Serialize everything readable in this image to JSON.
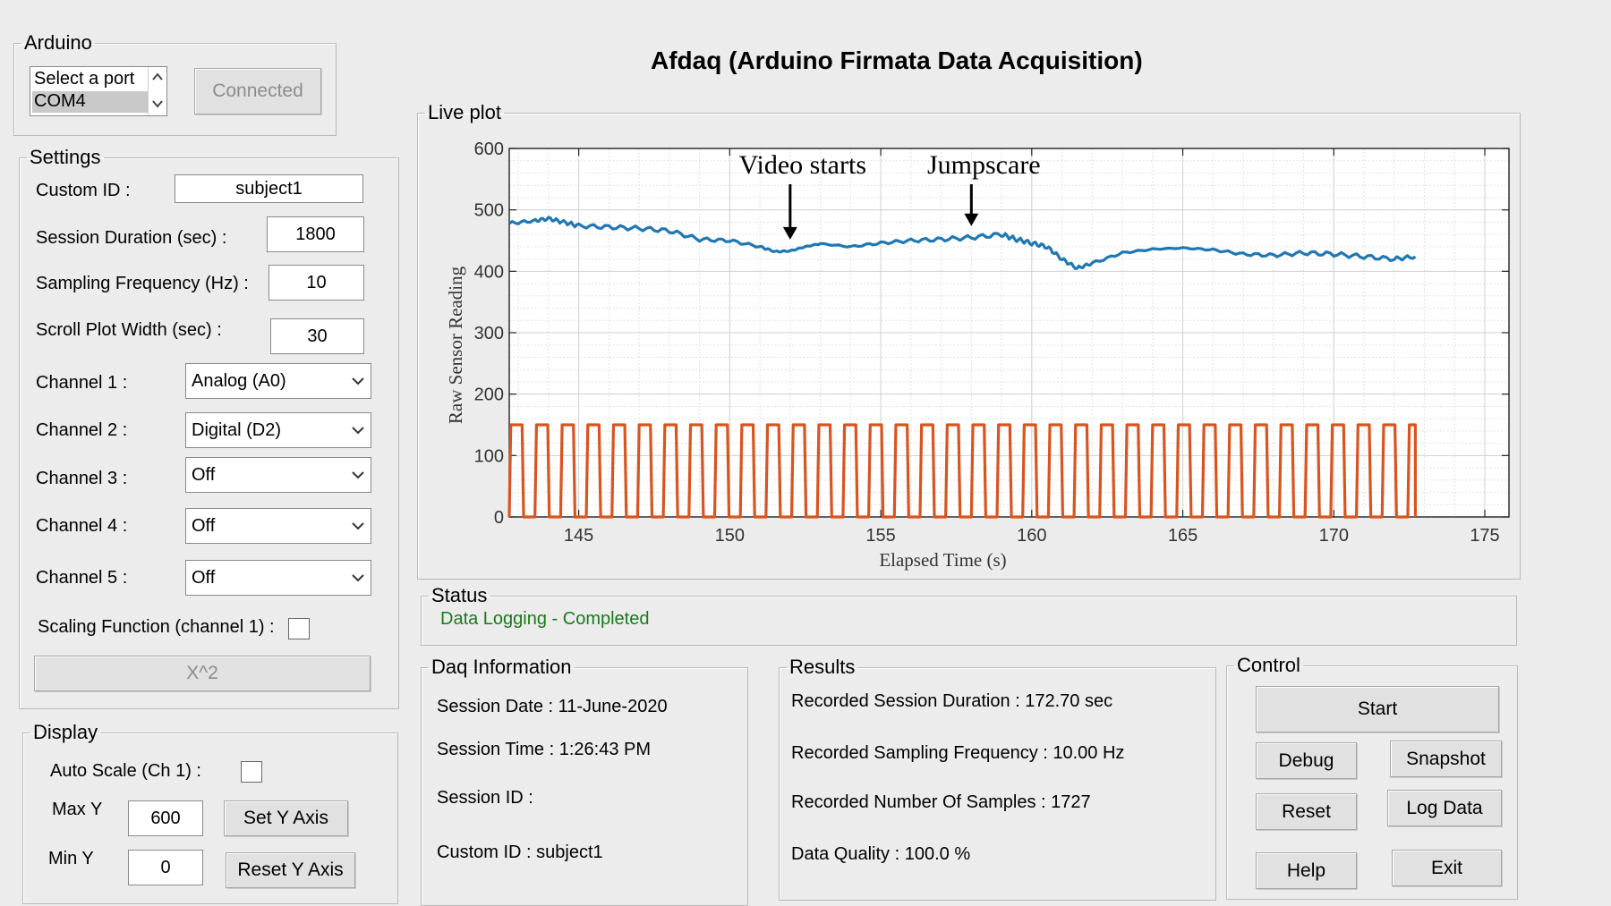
{
  "app_title": "Afdaq (Arduino Firmata Data Acquisition)",
  "arduino": {
    "legend": "Arduino",
    "ports": [
      "Select a port",
      "COM4"
    ],
    "connect_button": "Connected"
  },
  "settings": {
    "legend": "Settings",
    "custom_id_label": "Custom ID :",
    "custom_id_value": "subject1",
    "session_duration_label": "Session Duration (sec) :",
    "session_duration_value": "1800",
    "sampling_frequency_label": "Sampling Frequency (Hz) :",
    "sampling_frequency_value": "10",
    "scroll_width_label": "Scroll Plot Width (sec) :",
    "scroll_width_value": "30",
    "channels": [
      {
        "label": "Channel 1 :",
        "value": "Analog (A0)"
      },
      {
        "label": "Channel 2 :",
        "value": "Digital (D2)"
      },
      {
        "label": "Channel 3 :",
        "value": "Off"
      },
      {
        "label": "Channel 4 :",
        "value": "Off"
      },
      {
        "label": "Channel 5 :",
        "value": "Off"
      }
    ],
    "scaling_label": "Scaling Function (channel 1) :",
    "scaling_button": "X^2"
  },
  "display": {
    "legend": "Display",
    "auto_scale_label": "Auto Scale (Ch 1) :",
    "max_y_label": "Max Y",
    "max_y_value": "600",
    "min_y_label": "Min Y",
    "min_y_value": "0",
    "set_y_button": "Set Y Axis",
    "reset_y_button": "Reset Y Axis"
  },
  "live_plot": {
    "legend": "Live plot"
  },
  "status": {
    "legend": "Status",
    "text": "Data Logging - Completed",
    "color": "#1a7a1a"
  },
  "daq_info": {
    "legend": "Daq Information",
    "session_date": "Session Date : 11-June-2020",
    "session_time": "Session Time :  1:26:43 PM",
    "session_id": "Session ID :",
    "custom_id": "Custom ID : subject1"
  },
  "results": {
    "legend": "Results",
    "duration": "Recorded Session Duration : 172.70 sec",
    "frequency": "Recorded Sampling Frequency : 10.00 Hz",
    "samples": "Recorded Number Of Samples : 1727",
    "quality": "Data Quality : 100.0 %"
  },
  "control": {
    "legend": "Control",
    "start": "Start",
    "debug": "Debug",
    "snapshot": "Snapshot",
    "reset": "Reset",
    "log_data": "Log Data",
    "help": "Help",
    "exit": "Exit"
  },
  "chart_data": {
    "type": "line",
    "xlabel": "Elapsed Time (s)",
    "ylabel": "Raw Sensor Reading",
    "xlim": [
      142.7,
      175.8
    ],
    "ylim": [
      0,
      600
    ],
    "x_ticks": [
      145,
      150,
      155,
      160,
      165,
      170,
      175
    ],
    "y_ticks": [
      0,
      100,
      200,
      300,
      400,
      500,
      600
    ],
    "grid": true,
    "annotations": [
      {
        "text": "Video starts",
        "x": 152.0,
        "y": 440
      },
      {
        "text": "Jumpscare",
        "x": 158.0,
        "y": 462
      }
    ],
    "series": [
      {
        "color": "#1f77b4",
        "style": "smooth",
        "x": [
          142.7,
          143.5,
          144.0,
          144.5,
          145.0,
          146.0,
          147.0,
          148.0,
          149.0,
          150.0,
          151.0,
          151.5,
          152.0,
          152.5,
          153.0,
          154.0,
          155.0,
          156.0,
          157.0,
          158.0,
          159.0,
          159.5,
          160.0,
          160.5,
          161.0,
          161.5,
          162.0,
          163.0,
          164.0,
          165.0,
          166.0,
          167.0,
          168.0,
          169.0,
          170.0,
          171.0,
          172.0,
          172.7
        ],
        "y": [
          478,
          482,
          486,
          480,
          474,
          472,
          470,
          466,
          452,
          450,
          440,
          432,
          433,
          440,
          445,
          440,
          446,
          450,
          452,
          455,
          460,
          452,
          446,
          440,
          420,
          405,
          413,
          430,
          436,
          438,
          435,
          428,
          426,
          430,
          428,
          424,
          420,
          424
        ]
      },
      {
        "color": "#d9541e",
        "style": "square",
        "period": 0.85,
        "high": 150,
        "low": 0,
        "x_range": [
          142.7,
          172.7
        ]
      }
    ]
  }
}
